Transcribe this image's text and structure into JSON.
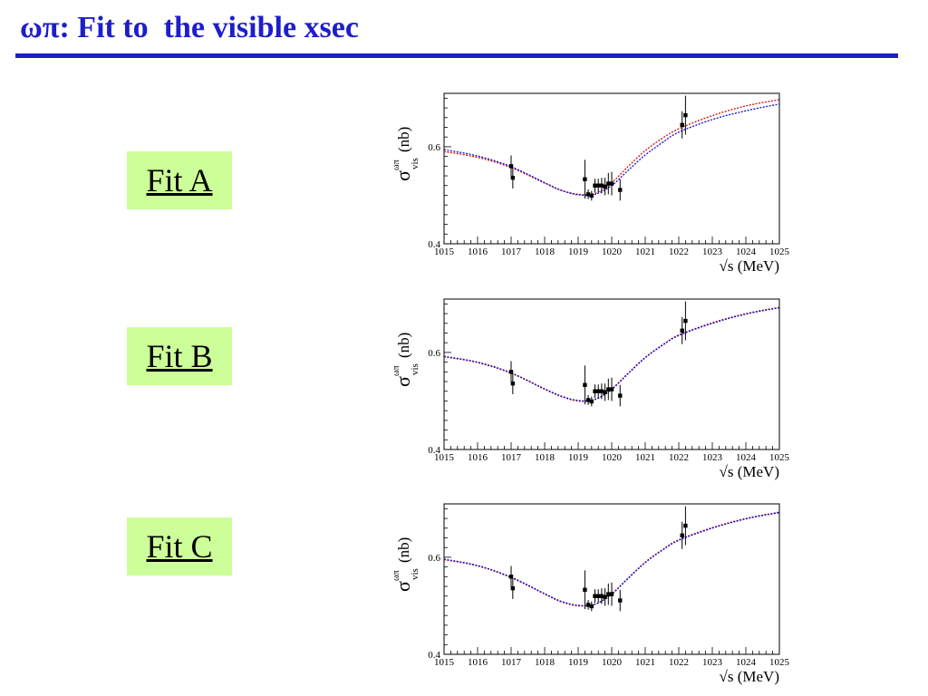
{
  "slide": {
    "title": "ωπ: Fit to  the visible xsec",
    "fit_labels": [
      "Fit A",
      "Fit B",
      "Fit C"
    ]
  },
  "colors": {
    "title": "#1e1ec8",
    "label_bg": "#ccff99",
    "curve_red": "#d01010",
    "curve_blue": "#1010d0"
  },
  "chart_data": [
    {
      "type": "scatter",
      "title": "",
      "xlabel": "√s (MeV)",
      "ylabel_main": "σ",
      "ylabel_sub": "vis",
      "ylabel_sup": "ωπ",
      "ylabel_unit": "(nb)",
      "xlim": [
        1015,
        1025
      ],
      "ylim": [
        0.4,
        0.71
      ],
      "xticks": [
        1015,
        1016,
        1017,
        1018,
        1019,
        1020,
        1021,
        1022,
        1023,
        1024,
        1025
      ],
      "yticks": [
        0.4,
        0.6
      ],
      "points": [
        {
          "x": 1017.0,
          "y": 0.56,
          "err": 0.022
        },
        {
          "x": 1017.05,
          "y": 0.536,
          "err": 0.022
        },
        {
          "x": 1019.2,
          "y": 0.533,
          "err": 0.04
        },
        {
          "x": 1019.3,
          "y": 0.502,
          "err": 0.01
        },
        {
          "x": 1019.4,
          "y": 0.499,
          "err": 0.01
        },
        {
          "x": 1019.5,
          "y": 0.52,
          "err": 0.014
        },
        {
          "x": 1019.6,
          "y": 0.52,
          "err": 0.014
        },
        {
          "x": 1019.7,
          "y": 0.52,
          "err": 0.016
        },
        {
          "x": 1019.8,
          "y": 0.518,
          "err": 0.018
        },
        {
          "x": 1019.9,
          "y": 0.524,
          "err": 0.022
        },
        {
          "x": 1020.0,
          "y": 0.524,
          "err": 0.024
        },
        {
          "x": 1020.25,
          "y": 0.511,
          "err": 0.022
        },
        {
          "x": 1022.1,
          "y": 0.645,
          "err": 0.028
        },
        {
          "x": 1022.2,
          "y": 0.665,
          "err": 0.04
        }
      ],
      "series": [
        {
          "color": "red",
          "x": [
            1015,
            1016,
            1017,
            1018,
            1018.5,
            1019,
            1019.5,
            1020,
            1020.5,
            1021,
            1021.5,
            1022,
            1023,
            1024,
            1025
          ],
          "y": [
            0.59,
            0.578,
            0.557,
            0.525,
            0.51,
            0.502,
            0.504,
            0.526,
            0.56,
            0.592,
            0.617,
            0.637,
            0.664,
            0.684,
            0.697
          ]
        },
        {
          "color": "blue",
          "x": [
            1015,
            1016,
            1017,
            1018,
            1018.5,
            1019,
            1019.5,
            1020,
            1020.5,
            1021,
            1021.5,
            1022,
            1023,
            1024,
            1025
          ],
          "y": [
            0.594,
            0.581,
            0.559,
            0.526,
            0.51,
            0.501,
            0.502,
            0.52,
            0.552,
            0.583,
            0.608,
            0.63,
            0.656,
            0.674,
            0.688
          ]
        }
      ]
    },
    {
      "type": "scatter",
      "title": "",
      "xlabel": "√s (MeV)",
      "ylabel_main": "σ",
      "ylabel_sub": "vis",
      "ylabel_sup": "ωπ",
      "ylabel_unit": "(nb)",
      "xlim": [
        1015,
        1025
      ],
      "ylim": [
        0.4,
        0.71
      ],
      "xticks": [
        1015,
        1016,
        1017,
        1018,
        1019,
        1020,
        1021,
        1022,
        1023,
        1024,
        1025
      ],
      "yticks": [
        0.4,
        0.6
      ],
      "points": [
        {
          "x": 1017.0,
          "y": 0.56,
          "err": 0.022
        },
        {
          "x": 1017.05,
          "y": 0.536,
          "err": 0.022
        },
        {
          "x": 1019.2,
          "y": 0.533,
          "err": 0.04
        },
        {
          "x": 1019.3,
          "y": 0.502,
          "err": 0.01
        },
        {
          "x": 1019.4,
          "y": 0.499,
          "err": 0.01
        },
        {
          "x": 1019.5,
          "y": 0.52,
          "err": 0.014
        },
        {
          "x": 1019.6,
          "y": 0.52,
          "err": 0.014
        },
        {
          "x": 1019.7,
          "y": 0.52,
          "err": 0.016
        },
        {
          "x": 1019.8,
          "y": 0.518,
          "err": 0.018
        },
        {
          "x": 1019.9,
          "y": 0.524,
          "err": 0.022
        },
        {
          "x": 1020.0,
          "y": 0.524,
          "err": 0.024
        },
        {
          "x": 1020.25,
          "y": 0.511,
          "err": 0.022
        },
        {
          "x": 1022.1,
          "y": 0.645,
          "err": 0.028
        },
        {
          "x": 1022.2,
          "y": 0.665,
          "err": 0.04
        }
      ],
      "series": [
        {
          "color": "red",
          "x": [
            1015,
            1016,
            1017,
            1018,
            1018.5,
            1019,
            1019.5,
            1020,
            1020.5,
            1021,
            1021.5,
            1022,
            1023,
            1024,
            1025
          ],
          "y": [
            0.591,
            0.579,
            0.557,
            0.524,
            0.509,
            0.5,
            0.503,
            0.525,
            0.558,
            0.59,
            0.615,
            0.636,
            0.661,
            0.68,
            0.693
          ]
        },
        {
          "color": "blue",
          "x": [
            1015,
            1016,
            1017,
            1018,
            1018.5,
            1019,
            1019.5,
            1020,
            1020.5,
            1021,
            1021.5,
            1022,
            1023,
            1024,
            1025
          ],
          "y": [
            0.592,
            0.58,
            0.558,
            0.525,
            0.51,
            0.501,
            0.503,
            0.524,
            0.557,
            0.589,
            0.614,
            0.635,
            0.66,
            0.679,
            0.692
          ]
        }
      ]
    },
    {
      "type": "scatter",
      "title": "",
      "xlabel": "√s (MeV)",
      "ylabel_main": "σ",
      "ylabel_sub": "vis",
      "ylabel_sup": "ωπ",
      "ylabel_unit": "(nb)",
      "xlim": [
        1015,
        1025
      ],
      "ylim": [
        0.4,
        0.71
      ],
      "xticks": [
        1015,
        1016,
        1017,
        1018,
        1019,
        1020,
        1021,
        1022,
        1023,
        1024,
        1025
      ],
      "yticks": [
        0.4,
        0.6
      ],
      "points": [
        {
          "x": 1017.0,
          "y": 0.56,
          "err": 0.022
        },
        {
          "x": 1017.05,
          "y": 0.536,
          "err": 0.022
        },
        {
          "x": 1019.2,
          "y": 0.533,
          "err": 0.04
        },
        {
          "x": 1019.3,
          "y": 0.502,
          "err": 0.01
        },
        {
          "x": 1019.4,
          "y": 0.499,
          "err": 0.01
        },
        {
          "x": 1019.5,
          "y": 0.52,
          "err": 0.014
        },
        {
          "x": 1019.6,
          "y": 0.52,
          "err": 0.014
        },
        {
          "x": 1019.7,
          "y": 0.52,
          "err": 0.016
        },
        {
          "x": 1019.8,
          "y": 0.518,
          "err": 0.018
        },
        {
          "x": 1019.9,
          "y": 0.524,
          "err": 0.022
        },
        {
          "x": 1020.0,
          "y": 0.524,
          "err": 0.024
        },
        {
          "x": 1020.25,
          "y": 0.511,
          "err": 0.022
        },
        {
          "x": 1022.1,
          "y": 0.645,
          "err": 0.028
        },
        {
          "x": 1022.2,
          "y": 0.665,
          "err": 0.04
        }
      ],
      "series": [
        {
          "color": "red",
          "x": [
            1015,
            1016,
            1017,
            1018,
            1018.5,
            1019,
            1019.5,
            1020,
            1020.5,
            1021,
            1021.5,
            1022,
            1023,
            1024,
            1025
          ],
          "y": [
            0.595,
            0.582,
            0.558,
            0.524,
            0.508,
            0.5,
            0.503,
            0.525,
            0.558,
            0.59,
            0.615,
            0.636,
            0.661,
            0.68,
            0.693
          ]
        },
        {
          "color": "blue",
          "x": [
            1015,
            1016,
            1017,
            1018,
            1018.5,
            1019,
            1019.5,
            1020,
            1020.5,
            1021,
            1021.5,
            1022,
            1023,
            1024,
            1025
          ],
          "y": [
            0.596,
            0.583,
            0.559,
            0.525,
            0.509,
            0.501,
            0.503,
            0.524,
            0.557,
            0.589,
            0.614,
            0.635,
            0.66,
            0.679,
            0.692
          ]
        }
      ]
    }
  ]
}
